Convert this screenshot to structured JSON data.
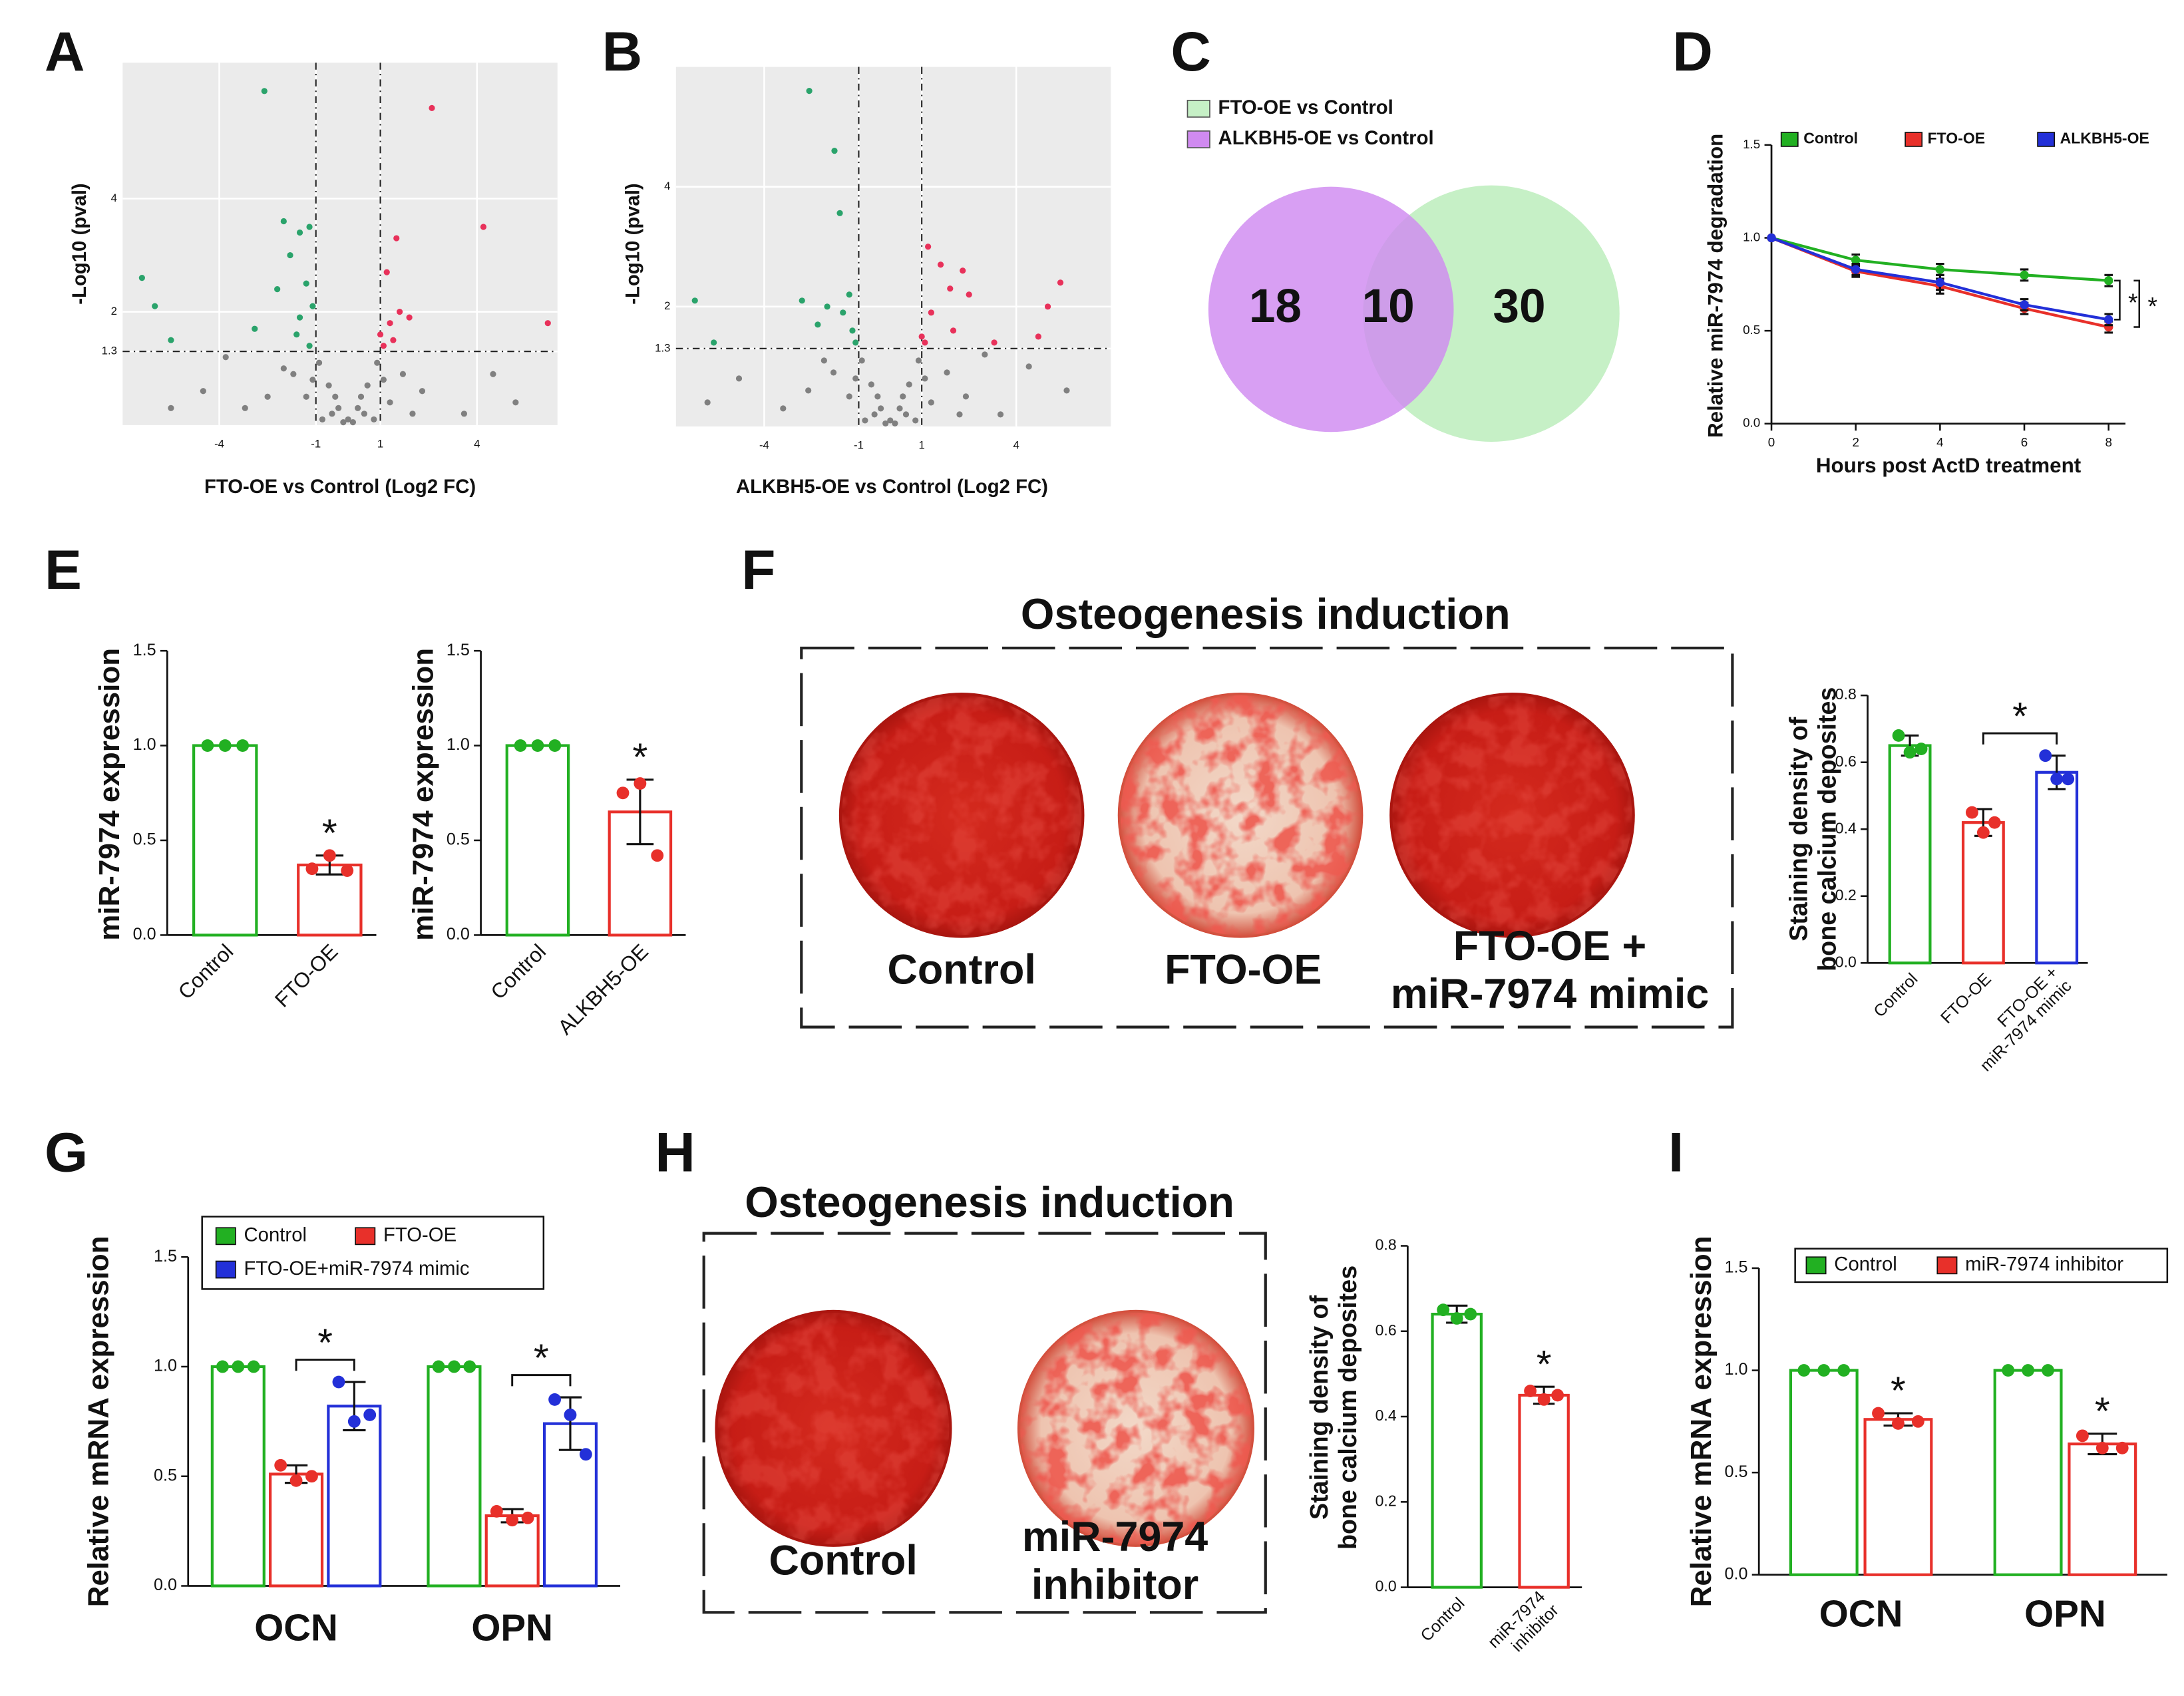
{
  "panel_labels": [
    "A",
    "B",
    "C",
    "D",
    "E",
    "F",
    "G",
    "H",
    "I"
  ],
  "image_panels": [
    {
      "title": "Osteogenesis induction",
      "labels": [
        "Control",
        "FTO-OE",
        "FTO-OE +\nmiR-7974 mimic"
      ]
    },
    {
      "title": "Osteogenesis induction",
      "labels": [
        "Control",
        "miR-7974\ninhibitor"
      ]
    }
  ],
  "chart_data": [
    {
      "type": "scatter",
      "ylabel": "-Log10 (pval)",
      "xlabel": "FTO-OE vs Control (Log2 FC)",
      "xlim": [
        -7,
        6.5
      ],
      "ylim": [
        0,
        6.4
      ],
      "xticks": [
        -4,
        -1,
        1,
        4
      ],
      "yticks": [
        1.3,
        2,
        4
      ],
      "grid": true,
      "background": "#ebebeb",
      "vlines": [
        -1,
        1
      ],
      "hlines": [
        1.3
      ],
      "series": [
        {
          "color": "#808080",
          "x": [
            0,
            -0.3,
            0.3,
            -0.6,
            0.6,
            -0.9,
            0.9,
            -0.5,
            0.5,
            -2.5,
            2.3,
            -3.2,
            3.6,
            -4.5,
            5.2,
            -1.7,
            1.7,
            -2.0,
            2.0,
            4.5,
            -1.3,
            1.3,
            -0.8,
            0.8,
            -0.15,
            0.15,
            -0.4,
            0.4,
            -1.1,
            1.1,
            -5.5,
            -3.8
          ],
          "y": [
            0.1,
            0.3,
            0.3,
            0.7,
            0.7,
            1.1,
            1.1,
            0.2,
            0.2,
            0.5,
            0.6,
            0.3,
            0.2,
            0.6,
            0.4,
            0.9,
            0.9,
            1.0,
            0.2,
            0.9,
            0.5,
            0.4,
            0.1,
            0.1,
            0.05,
            0.05,
            0.5,
            0.5,
            0.8,
            0.8,
            0.3,
            1.2
          ]
        },
        {
          "color": "#2aa36b",
          "x": [
            -2.6,
            -2.0,
            -1.5,
            -1.2,
            -1.8,
            -2.2,
            -1.3,
            -1.1,
            -1.5,
            -6.4,
            -6.0,
            -5.5,
            -2.9,
            -1.6,
            -1.2
          ],
          "y": [
            5.9,
            3.6,
            3.4,
            3.5,
            3.0,
            2.4,
            2.5,
            2.1,
            1.9,
            2.6,
            2.1,
            1.5,
            1.7,
            1.6,
            1.4
          ]
        },
        {
          "color": "#e8315a",
          "x": [
            2.6,
            4.2,
            1.5,
            1.2,
            1.0,
            1.3,
            1.6,
            1.1,
            6.2,
            1.9,
            1.4
          ],
          "y": [
            5.6,
            3.5,
            3.3,
            2.7,
            1.6,
            1.8,
            2.0,
            1.4,
            1.8,
            1.9,
            1.5
          ]
        }
      ]
    },
    {
      "type": "scatter",
      "ylabel": "-Log10 (pval)",
      "xlabel": "ALKBH5-OE vs Control (Log2 FC)",
      "xlim": [
        -6.8,
        7
      ],
      "ylim": [
        0,
        6
      ],
      "xticks": [
        -4,
        -1,
        1,
        4
      ],
      "yticks": [
        1.3,
        2,
        4
      ],
      "grid": true,
      "background": "#ebebeb",
      "vlines": [
        -1,
        1
      ],
      "hlines": [
        1.3
      ],
      "series": [
        {
          "color": "#808080",
          "x": [
            0,
            -0.3,
            0.3,
            -0.6,
            0.6,
            -0.9,
            0.9,
            -0.5,
            0.5,
            -2.6,
            2.4,
            -3.4,
            3.5,
            -4.8,
            5.6,
            -1.8,
            1.8,
            -2.1,
            2.2,
            4.4,
            -1.3,
            1.3,
            -0.8,
            0.8,
            -0.15,
            0.15,
            -0.4,
            0.4,
            -1.1,
            1.1,
            -5.8,
            3.0
          ],
          "y": [
            0.1,
            0.3,
            0.3,
            0.7,
            0.7,
            1.1,
            1.1,
            0.2,
            0.2,
            0.6,
            0.5,
            0.3,
            0.2,
            0.8,
            0.6,
            0.9,
            0.9,
            1.1,
            0.2,
            1.0,
            0.5,
            0.4,
            0.1,
            0.1,
            0.05,
            0.05,
            0.5,
            0.5,
            0.8,
            0.8,
            0.4,
            1.2
          ]
        },
        {
          "color": "#2aa36b",
          "x": [
            -2.57,
            -1.77,
            -1.6,
            -6.2,
            -5.6,
            -2.8,
            -2.0,
            -1.5,
            -1.2,
            -1.1,
            -2.3,
            -1.3
          ],
          "y": [
            5.6,
            4.6,
            3.56,
            2.1,
            1.4,
            2.1,
            2.0,
            1.9,
            1.6,
            1.4,
            1.7,
            2.2
          ]
        },
        {
          "color": "#e8315a",
          "x": [
            1.2,
            1.6,
            1.9,
            2.5,
            1.3,
            2.0,
            1.1,
            3.3,
            5.4,
            5.0,
            4.7,
            1.0,
            2.3
          ],
          "y": [
            3.0,
            2.7,
            2.3,
            2.2,
            1.9,
            1.6,
            1.4,
            1.4,
            2.4,
            2.0,
            1.5,
            1.5,
            2.6
          ]
        }
      ]
    },
    {
      "type": "venn",
      "sets": [
        {
          "name": "FTO-OE vs Control",
          "color": "#c6f0c6",
          "text_color": "#2f7a3a",
          "value": 30
        },
        {
          "name": "ALKBH5-OE vs Control",
          "color": "#d08af0",
          "text_color": "#6a2b8a",
          "value": 18
        }
      ],
      "overlap": 10
    },
    {
      "type": "line",
      "ylabel": "Relative miR-7974 degradation",
      "xlabel": "Hours post ActD treatment",
      "x": [
        0,
        2,
        4,
        6,
        8
      ],
      "xlim": [
        0,
        8.4
      ],
      "xticks": [
        0,
        2,
        4,
        6,
        8
      ],
      "ylim": [
        0,
        1.5
      ],
      "yticks": [
        {
          "value": 0,
          "label": "0.0"
        },
        0.5,
        {
          "value": 1,
          "label": "1.0"
        },
        1.5
      ],
      "series": [
        {
          "name": "Control",
          "color": "#22b022",
          "values": [
            1,
            0.88,
            0.83,
            0.8,
            0.77
          ],
          "errors": [
            0,
            0.03,
            0.03,
            0.03,
            0.03
          ]
        },
        {
          "name": "FTO-OE",
          "color": "#e8302a",
          "values": [
            1,
            0.82,
            0.74,
            0.62,
            0.52
          ],
          "errors": [
            0,
            0.03,
            0.04,
            0.03,
            0.03
          ]
        },
        {
          "name": "ALKBH5-OE",
          "color": "#2330d8",
          "values": [
            1,
            0.83,
            0.76,
            0.64,
            0.56
          ],
          "errors": [
            0,
            0.03,
            0.04,
            0.03,
            0.03
          ]
        }
      ],
      "annotations": [
        {
          "text": "*",
          "series": [
            0,
            2
          ]
        },
        {
          "text": "*",
          "series": [
            0,
            1
          ]
        }
      ]
    },
    {
      "type": "bar",
      "ylabel": "miR-7974 expression",
      "categories": [
        "Control",
        "FTO-OE"
      ],
      "colors": [
        "#22b022",
        "#e8302a"
      ],
      "values": [
        1,
        0.37
      ],
      "errors": [
        0,
        0.05
      ],
      "points": [
        [
          1,
          1,
          1
        ],
        [
          0.35,
          0.42,
          0.34
        ]
      ],
      "ylim": [
        0,
        1.5
      ],
      "yticks": [
        {
          "value": 0,
          "label": "0.0"
        },
        0.5,
        {
          "value": 1,
          "label": "1.0"
        },
        1.5
      ],
      "annotations": [
        {
          "text": "*",
          "category": 1
        }
      ]
    },
    {
      "type": "bar",
      "ylabel": "miR-7974 expression",
      "categories": [
        "Control",
        "ALKBH5-OE"
      ],
      "colors": [
        "#22b022",
        "#e8302a"
      ],
      "values": [
        1,
        0.65
      ],
      "errors": [
        0,
        0.17
      ],
      "points": [
        [
          1,
          1,
          1
        ],
        [
          0.75,
          0.8,
          0.42
        ]
      ],
      "ylim": [
        0,
        1.5
      ],
      "yticks": [
        {
          "value": 0,
          "label": "0.0"
        },
        0.5,
        {
          "value": 1,
          "label": "1.0"
        },
        1.5
      ],
      "annotations": [
        {
          "text": "*",
          "category": 1
        }
      ]
    },
    {
      "type": "bar",
      "ylabel": "Staining density of\nbone calcium deposites",
      "categories": [
        "Control",
        "FTO-OE",
        "FTO-OE +\nmiR-7974 mimic"
      ],
      "colors": [
        "#22b022",
        "#e8302a",
        "#2330d8"
      ],
      "values": [
        0.65,
        0.42,
        0.57
      ],
      "errors": [
        0.03,
        0.04,
        0.05
      ],
      "points": [
        [
          0.68,
          0.63,
          0.64
        ],
        [
          0.45,
          0.39,
          0.42
        ],
        [
          0.62,
          0.55,
          0.55
        ]
      ],
      "ylim": [
        0,
        0.8
      ],
      "yticks": [
        {
          "value": 0,
          "label": "0.0"
        },
        0.2,
        0.4,
        0.6,
        0.8
      ],
      "annotations": [
        {
          "text": "*",
          "bracket": [
            1,
            2
          ]
        }
      ]
    },
    {
      "type": "grouped_bar",
      "ylabel": "Relative mRNA expression",
      "categories": [
        "OCN",
        "OPN"
      ],
      "series": [
        {
          "name": "Control",
          "color": "#22b022",
          "values": [
            1,
            1
          ],
          "errors": [
            0,
            0
          ],
          "points": [
            [
              1,
              1,
              1
            ],
            [
              1,
              1,
              1
            ]
          ]
        },
        {
          "name": "FTO-OE",
          "color": "#e8302a",
          "values": [
            0.51,
            0.32
          ],
          "errors": [
            0.04,
            0.03
          ],
          "points": [
            [
              0.55,
              0.48,
              0.5
            ],
            [
              0.34,
              0.3,
              0.31
            ]
          ]
        },
        {
          "name": "FTO-OE+miR-7974 mimic",
          "color": "#2330d8",
          "values": [
            0.82,
            0.74
          ],
          "errors": [
            0.11,
            0.12
          ],
          "points": [
            [
              0.93,
              0.75,
              0.78
            ],
            [
              0.85,
              0.78,
              0.6
            ]
          ]
        }
      ],
      "ylim": [
        0,
        1.5
      ],
      "yticks": [
        {
          "value": 0,
          "label": "0.0"
        },
        0.5,
        {
          "value": 1,
          "label": "1.0"
        },
        1.5
      ],
      "annotations": [
        {
          "text": "*",
          "group": 0,
          "series": [
            1,
            2
          ]
        },
        {
          "text": "*",
          "group": 1,
          "series": [
            1,
            2
          ]
        }
      ]
    },
    {
      "type": "bar",
      "ylabel": "Staining density of\nbone calcium deposites",
      "categories": [
        "Control",
        "miR-7974\ninhibitor"
      ],
      "colors": [
        "#22b022",
        "#e8302a"
      ],
      "values": [
        0.64,
        0.45
      ],
      "errors": [
        0.02,
        0.02
      ],
      "points": [
        [
          0.65,
          0.63,
          0.64
        ],
        [
          0.46,
          0.44,
          0.45
        ]
      ],
      "ylim": [
        0,
        0.8
      ],
      "yticks": [
        {
          "value": 0,
          "label": "0.0"
        },
        0.2,
        0.4,
        0.6,
        0.8
      ],
      "annotations": [
        {
          "text": "*",
          "category": 1
        }
      ]
    },
    {
      "type": "grouped_bar",
      "ylabel": "Relative mRNA expression",
      "categories": [
        "OCN",
        "OPN"
      ],
      "series": [
        {
          "name": "Control",
          "color": "#22b022",
          "values": [
            1,
            1
          ],
          "errors": [
            0,
            0
          ],
          "points": [
            [
              1,
              1,
              1
            ],
            [
              1,
              1,
              1
            ]
          ]
        },
        {
          "name": "miR-7974 inhibitor",
          "color": "#e8302a",
          "values": [
            0.76,
            0.64
          ],
          "errors": [
            0.03,
            0.05
          ],
          "points": [
            [
              0.79,
              0.74,
              0.75
            ],
            [
              0.68,
              0.62,
              0.62
            ]
          ]
        }
      ],
      "ylim": [
        0,
        1.5
      ],
      "yticks": [
        {
          "value": 0,
          "label": "0.0"
        },
        0.5,
        {
          "value": 1,
          "label": "1.0"
        },
        1.5
      ],
      "annotations": [
        {
          "text": "*",
          "group": 0,
          "series": 1
        },
        {
          "text": "*",
          "group": 1,
          "series": 1
        }
      ]
    }
  ]
}
